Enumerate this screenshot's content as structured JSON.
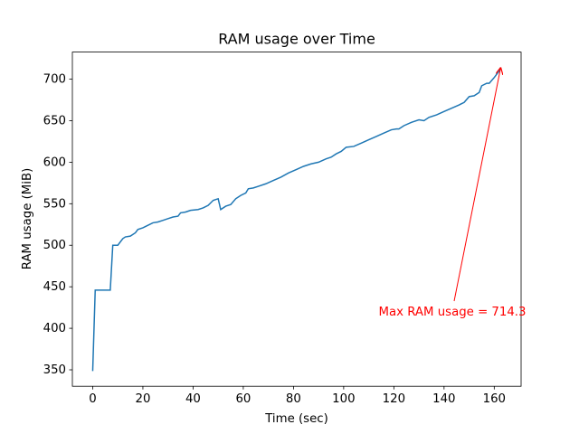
{
  "chart_data": {
    "type": "line",
    "title": "RAM usage over Time",
    "x_label": "Time (sec)",
    "y_label": "RAM usage (MiB)",
    "x": [
      0,
      1,
      7,
      8,
      10,
      12,
      13,
      15,
      17,
      18,
      20,
      22,
      24,
      26,
      28,
      30,
      32,
      34,
      35,
      37,
      39,
      42,
      44,
      46,
      47,
      48,
      49,
      50,
      51,
      53,
      55,
      57,
      59,
      61,
      62,
      64,
      66,
      69,
      72,
      75,
      78,
      81,
      84,
      87,
      90,
      93,
      95,
      97,
      99,
      101,
      104,
      107,
      110,
      113,
      116,
      119,
      121,
      122,
      124,
      127,
      130,
      132,
      134,
      137,
      140,
      143,
      146,
      148,
      150,
      152,
      154,
      155,
      157,
      158,
      160,
      162,
      162.6
    ],
    "series": [
      {
        "name": "RAM usage",
        "color": "#1f77b4",
        "values": [
          348.5,
          446,
          446,
          500,
          500,
          508,
          510,
          511,
          515,
          519,
          521,
          524,
          527,
          528,
          530,
          532,
          534,
          535,
          539,
          540,
          542,
          543,
          545,
          548,
          551,
          554,
          555,
          556,
          543,
          547,
          549,
          556,
          560,
          563,
          568,
          569,
          571,
          574,
          578,
          582,
          587,
          591,
          595,
          598,
          600,
          604,
          606,
          610,
          613,
          618,
          619,
          623,
          627,
          631,
          635,
          639,
          640,
          640,
          644,
          648,
          651,
          650,
          654,
          657,
          661,
          665,
          669,
          672,
          679,
          680,
          684,
          692,
          695,
          695,
          702,
          710,
          714.3
        ]
      }
    ],
    "annotation": "Max RAM usage = 714.3",
    "xlim": [
      -8.1,
      170.7
    ],
    "ylim": [
      330.2,
      732.6
    ],
    "xticks": [
      0,
      20,
      40,
      60,
      80,
      100,
      120,
      140,
      160
    ],
    "yticks": [
      350,
      400,
      450,
      500,
      550,
      600,
      650,
      700
    ],
    "annotation_color": "#ff0000"
  }
}
